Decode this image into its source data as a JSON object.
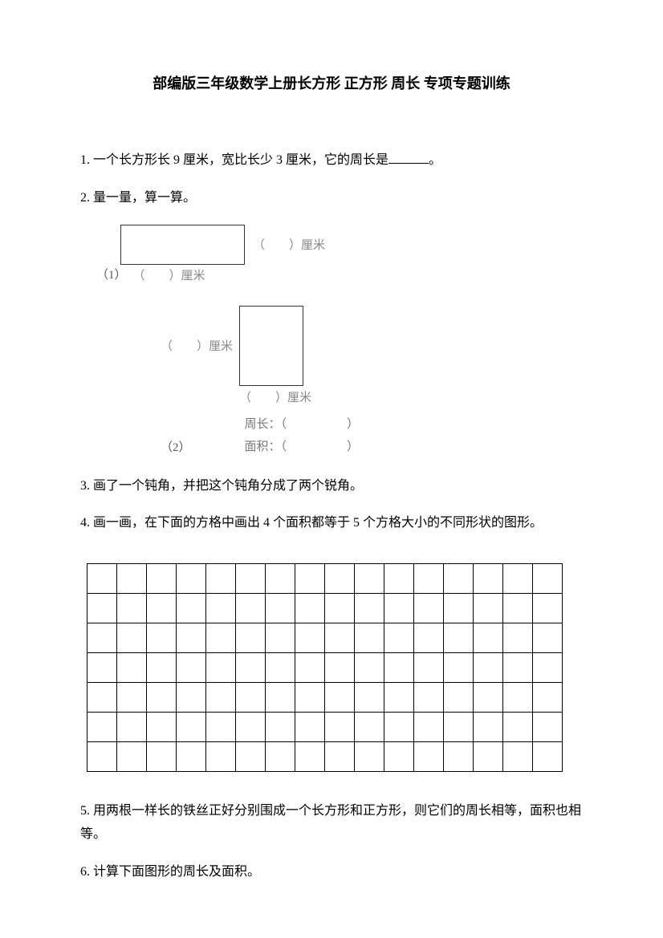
{
  "title": "部编版三年级数学上册长方形 正方形 周长 专项专题训练",
  "questions": {
    "q1": {
      "num": "1.",
      "text_before": "一个长方形长 9 厘米，宽比长少 3 厘米，它的周长是",
      "text_after": "。"
    },
    "q2": {
      "num": "2.",
      "text": "量一量，算一算。"
    },
    "q3": {
      "num": "3.",
      "text": "画了一个钝角，并把这个钝角分成了两个锐角。"
    },
    "q4": {
      "num": "4.",
      "text": "画一画，在下面的方格中画出 4 个面积都等于 5 个方格大小的不同形状的图形。"
    },
    "q5": {
      "num": "5.",
      "text": "用两根一样长的铁丝正好分别围成一个长方形和正方形，则它们的周长相等，面积也相等。"
    },
    "q6": {
      "num": "6.",
      "text": "计算下面图形的周长及面积。"
    }
  },
  "figures": {
    "fig1": {
      "label": "（1）",
      "right_label": "（　　）厘米",
      "bottom_label": "（　　）厘米"
    },
    "fig2": {
      "label": "（2）",
      "left_label": "（　　）厘米",
      "bottom_label": "（　　）厘米",
      "perimeter": "周长：（　　　　　）",
      "area": "面积：（　　　　　）"
    }
  },
  "grid": {
    "rows": 7,
    "cols": 16,
    "cell_size": 37,
    "border_color": "#000000"
  },
  "colors": {
    "text": "#000000",
    "faded_text": "#888888",
    "background": "#ffffff"
  }
}
